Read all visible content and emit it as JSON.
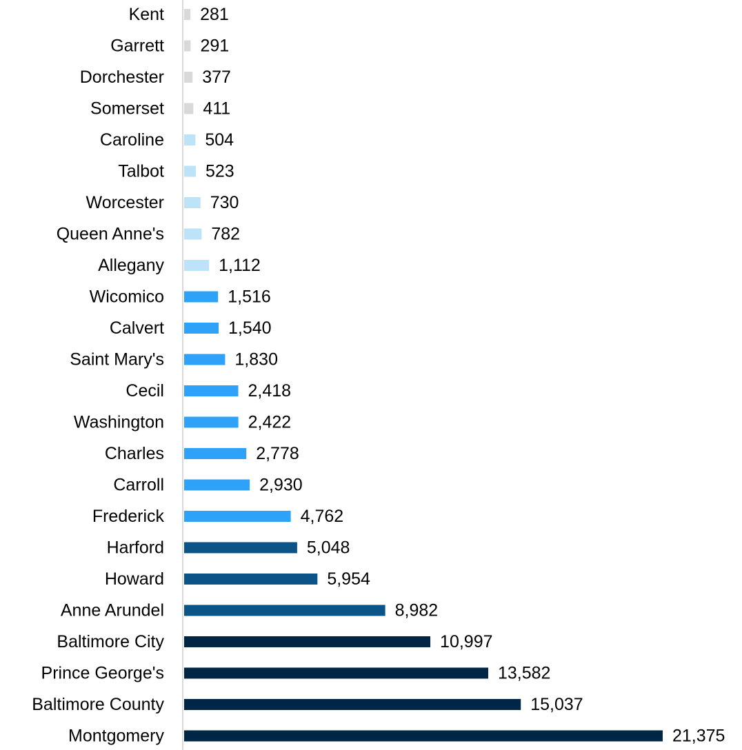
{
  "chart_data": {
    "type": "bar",
    "orientation": "horizontal",
    "title": "",
    "xlabel": "",
    "ylabel": "",
    "grid": false,
    "legend": "none",
    "categories": [
      "Kent",
      "Garrett",
      "Dorchester",
      "Somerset",
      "Caroline",
      "Talbot",
      "Worcester",
      "Queen Anne's",
      "Allegany",
      "Wicomico",
      "Calvert",
      "Saint Mary's",
      "Cecil",
      "Washington",
      "Charles",
      "Carroll",
      "Frederick",
      "Harford",
      "Howard",
      "Anne Arundel",
      "Baltimore City",
      "Prince George's",
      "Baltimore County",
      "Montgomery"
    ],
    "values": [
      281,
      291,
      377,
      411,
      504,
      523,
      730,
      782,
      1112,
      1516,
      1540,
      1830,
      2418,
      2422,
      2778,
      2930,
      4762,
      5048,
      5954,
      8982,
      10997,
      13582,
      15037,
      21375
    ],
    "value_labels": [
      "281",
      "291",
      "377",
      "411",
      "504",
      "523",
      "730",
      "782",
      "1,112",
      "1,516",
      "1,540",
      "1,830",
      "2,418",
      "2,422",
      "2,778",
      "2,930",
      "4,762",
      "5,048",
      "5,954",
      "8,982",
      "10,997",
      "13,582",
      "15,037",
      "21,375"
    ],
    "xlim": [
      0,
      21375
    ],
    "bar_colors": [
      "#d9d9d9",
      "#d9d9d9",
      "#d9d9d9",
      "#d9d9d9",
      "#bde3f9",
      "#bde3f9",
      "#bde3f9",
      "#bde3f9",
      "#bde3f9",
      "#2ea1f8",
      "#2ea1f8",
      "#2ea1f8",
      "#2ea1f8",
      "#2ea1f8",
      "#2ea1f8",
      "#2ea1f8",
      "#2ea1f8",
      "#0b5488",
      "#0b5488",
      "#0b5488",
      "#002645",
      "#002645",
      "#002645",
      "#002645"
    ],
    "axis_color": "#d9d9d9"
  }
}
